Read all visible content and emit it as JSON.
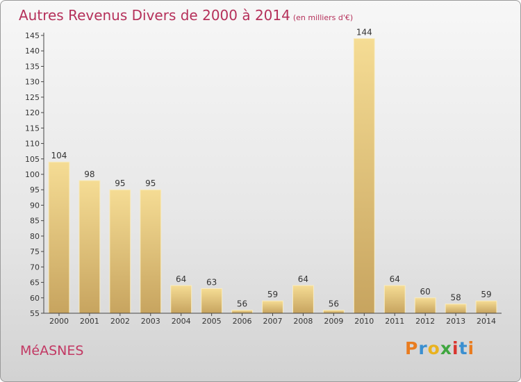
{
  "title": "Autres Revenus Divers de 2000 à 2014",
  "unit": "(en milliers d'€)",
  "commune": "MéASNES",
  "logo": {
    "letters": [
      "P",
      "r",
      "o",
      "x",
      "i",
      "t",
      "i"
    ],
    "colors": [
      "#e97c1f",
      "#3a8fd0",
      "#e9b21f",
      "#3fa63f",
      "#d8342e",
      "#3a8fd0",
      "#e97c1f"
    ]
  },
  "colors": {
    "bar_light": "#f5dc94",
    "bar_dark": "#c7a45f",
    "title": "#b5305a"
  },
  "chart_data": {
    "type": "bar",
    "categories": [
      "2000",
      "2001",
      "2002",
      "2003",
      "2004",
      "2005",
      "2006",
      "2007",
      "2008",
      "2009",
      "2010",
      "2011",
      "2012",
      "2013",
      "2014"
    ],
    "values": [
      104,
      98,
      95,
      95,
      64,
      63,
      56,
      59,
      64,
      56,
      144,
      64,
      60,
      58,
      59
    ],
    "ylim": [
      55,
      145
    ],
    "yticks": [
      55,
      60,
      65,
      70,
      75,
      80,
      85,
      90,
      95,
      100,
      105,
      110,
      115,
      120,
      125,
      130,
      135,
      140,
      145
    ],
    "grid": false,
    "xlabel": "",
    "ylabel": ""
  }
}
